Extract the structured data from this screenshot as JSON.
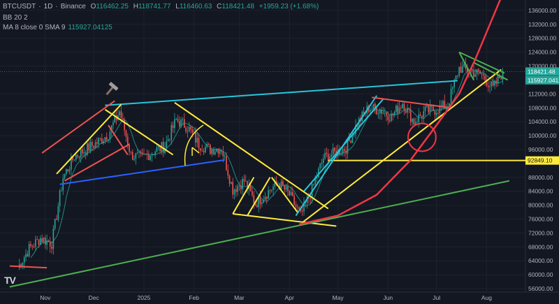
{
  "header": {
    "symbol": "BTCUSDT",
    "interval": "1D",
    "exchange": "Binance",
    "open_label": "O",
    "open": "116462.25",
    "high_label": "H",
    "high": "118741.77",
    "low_label": "L",
    "low": "116460.63",
    "close_label": "C",
    "close": "118421.48",
    "change": "+1959.23 (+1.68%)",
    "bb_label": "BB 20 2",
    "ma_label": "MA 8 close 0 SMA 9",
    "ma_value": "115927.04125"
  },
  "logo_text": "TV",
  "colors": {
    "background": "#131722",
    "up": "#26a69a",
    "down": "#ef5350",
    "yellow": "#ffeb3b",
    "cyan": "#26c6da",
    "green": "#4caf50",
    "blue": "#2962ff",
    "red": "#f23645"
  },
  "chart_data": {
    "type": "candlestick",
    "x_ticks": [
      "Nov",
      "Dec",
      "2025",
      "Feb",
      "Mar",
      "Apr",
      "May",
      "Jun",
      "Jul",
      "Aug"
    ],
    "y_ticks": [
      "136000.00",
      "132000.00",
      "128000.00",
      "124000.00",
      "120000.00",
      "112000.00",
      "108000.00",
      "104000.00",
      "100000.00",
      "96000.00",
      "88000.00",
      "84000.00",
      "80000.00",
      "76000.00",
      "72000.00",
      "68000.00",
      "64000.00",
      "60000.00",
      "56000.00"
    ],
    "ylim": [
      55000,
      139000
    ],
    "price_labels": [
      {
        "value": 118421.48,
        "text": "118421.48",
        "color": "#26a69a"
      },
      {
        "value": 115927.04125,
        "text": "115927.0412",
        "color": "#26a69a"
      },
      {
        "value": 92849.1,
        "text": "92849.10",
        "color": "#ffeb3b"
      }
    ],
    "horizontal_line": 92849.1,
    "price_path": [
      [
        "2024-10-15",
        62000
      ],
      [
        "2024-10-22",
        67500
      ],
      [
        "2024-10-29",
        70500
      ],
      [
        "2024-11-05",
        69000
      ],
      [
        "2024-11-12",
        88000
      ],
      [
        "2024-11-19",
        94000
      ],
      [
        "2024-11-26",
        96000
      ],
      [
        "2024-12-03",
        98000
      ],
      [
        "2024-12-10",
        100500
      ],
      [
        "2024-12-17",
        107000
      ],
      [
        "2024-12-24",
        94500
      ],
      [
        "2024-12-31",
        93500
      ],
      [
        "2025-01-07",
        95500
      ],
      [
        "2025-01-14",
        97000
      ],
      [
        "2025-01-21",
        104500
      ],
      [
        "2025-01-28",
        102500
      ],
      [
        "2025-02-04",
        97500
      ],
      [
        "2025-02-11",
        96000
      ],
      [
        "2025-02-18",
        96500
      ],
      [
        "2025-02-25",
        84500
      ],
      [
        "2025-03-04",
        87000
      ],
      [
        "2025-03-11",
        80500
      ],
      [
        "2025-03-18",
        83500
      ],
      [
        "2025-03-25",
        86500
      ],
      [
        "2025-04-01",
        83000
      ],
      [
        "2025-04-08",
        77000
      ],
      [
        "2025-04-15",
        84500
      ],
      [
        "2025-04-22",
        93500
      ],
      [
        "2025-04-29",
        95000
      ],
      [
        "2025-05-06",
        96500
      ],
      [
        "2025-05-13",
        103500
      ],
      [
        "2025-05-20",
        108000
      ],
      [
        "2025-05-27",
        107500
      ],
      [
        "2025-06-03",
        105500
      ],
      [
        "2025-06-10",
        109500
      ],
      [
        "2025-06-17",
        104000
      ],
      [
        "2025-06-24",
        107000
      ],
      [
        "2025-07-01",
        107500
      ],
      [
        "2025-07-08",
        109000
      ],
      [
        "2025-07-15",
        119500
      ],
      [
        "2025-07-22",
        118500
      ],
      [
        "2025-07-29",
        117500
      ],
      [
        "2025-08-05",
        113500
      ],
      [
        "2025-08-11",
        118421
      ]
    ],
    "trendlines": [
      {
        "color": "#26c6da",
        "points": [
          [
            "2024-12-08",
            108700
          ],
          [
            "2025-07-14",
            115800
          ]
        ]
      },
      {
        "color": "#26c6da",
        "points": [
          [
            "2025-04-05",
            77000
          ],
          [
            "2025-05-25",
            111500
          ]
        ]
      },
      {
        "color": "#26c6da",
        "points": [
          [
            "2025-04-10",
            84000
          ],
          [
            "2025-05-29",
            110500
          ]
        ]
      },
      {
        "color": "#ffeb3b",
        "points": [
          [
            "2025-01-20",
            109500
          ],
          [
            "2025-04-25",
            79000
          ]
        ]
      },
      {
        "color": "#ffeb3b",
        "points": [
          [
            "2025-02-25",
            77500
          ],
          [
            "2025-04-30",
            74000
          ]
        ]
      },
      {
        "color": "#ffeb3b",
        "points": [
          [
            "2025-04-09",
            75000
          ],
          [
            "2025-08-10",
            119000
          ]
        ]
      },
      {
        "color": "#ffeb3b",
        "points": [
          [
            "2024-11-08",
            89000
          ],
          [
            "2024-12-18",
            109000
          ]
        ]
      },
      {
        "color": "#ffeb3b",
        "points": [
          [
            "2024-12-08",
            107500
          ],
          [
            "2025-01-19",
            94500
          ]
        ]
      },
      {
        "color": "#ffeb3b",
        "points": [
          [
            "2025-02-25",
            77500
          ],
          [
            "2025-03-10",
            88000
          ]
        ]
      },
      {
        "color": "#ffeb3b",
        "points": [
          [
            "2025-03-06",
            77000
          ],
          [
            "2025-03-20",
            88000
          ]
        ]
      },
      {
        "color": "#ffeb3b",
        "points": [
          [
            "2025-03-21",
            88000
          ],
          [
            "2025-04-06",
            78000
          ]
        ]
      },
      {
        "color": "#ef5350",
        "points": [
          [
            "2024-10-30",
            95000
          ],
          [
            "2024-12-14",
            110000
          ]
        ]
      },
      {
        "color": "#ef5350",
        "points": [
          [
            "2024-12-10",
            103000
          ],
          [
            "2024-12-22",
            94500
          ]
        ]
      },
      {
        "color": "#ef5350",
        "points": [
          [
            "2024-11-13",
            87000
          ],
          [
            "2024-12-23",
            97500
          ]
        ]
      },
      {
        "color": "#ef5350",
        "points": [
          [
            "2025-05-22",
            111000
          ],
          [
            "2025-07-10",
            108000
          ]
        ]
      },
      {
        "color": "#ef5350",
        "points": [
          [
            "2024-10-10",
            62500
          ],
          [
            "2024-11-02",
            62000
          ]
        ]
      },
      {
        "color": "#4caf50",
        "points": [
          [
            "2024-10-10",
            56500
          ],
          [
            "2025-08-15",
            87000
          ]
        ]
      },
      {
        "color": "#2962ff",
        "points": [
          [
            "2024-11-10",
            86000
          ],
          [
            "2025-02-20",
            93000
          ]
        ]
      },
      {
        "color": "#4caf50",
        "points": [
          [
            "2025-07-15",
            124000
          ],
          [
            "2025-08-12",
            118000
          ]
        ]
      },
      {
        "color": "#4caf50",
        "points": [
          [
            "2025-07-15",
            124000
          ],
          [
            "2025-07-24",
            116000
          ]
        ]
      },
      {
        "color": "#4caf50",
        "points": [
          [
            "2025-07-24",
            121000
          ],
          [
            "2025-08-14",
            116000
          ]
        ]
      }
    ],
    "parabolic_curve": {
      "color": "#f23645",
      "points": [
        [
          "2025-04-07",
          74500
        ],
        [
          "2025-05-01",
          77000
        ],
        [
          "2025-05-25",
          83000
        ],
        [
          "2025-06-15",
          93000
        ],
        [
          "2025-07-01",
          103000
        ],
        [
          "2025-07-15",
          112000
        ],
        [
          "2025-07-25",
          122000
        ],
        [
          "2025-08-03",
          132000
        ],
        [
          "2025-08-12",
          142000
        ]
      ]
    },
    "annotations": [
      {
        "type": "circle",
        "color": "#f23645",
        "center": [
          "2025-06-22",
          99500
        ],
        "radius": 4000
      },
      {
        "type": "hammer-icon",
        "at": [
          "2024-12-12",
          113500
        ]
      },
      {
        "type": "arc-arrow",
        "color": "#ffeb3b",
        "at": [
          "2025-01-30",
          97000
        ]
      }
    ]
  }
}
